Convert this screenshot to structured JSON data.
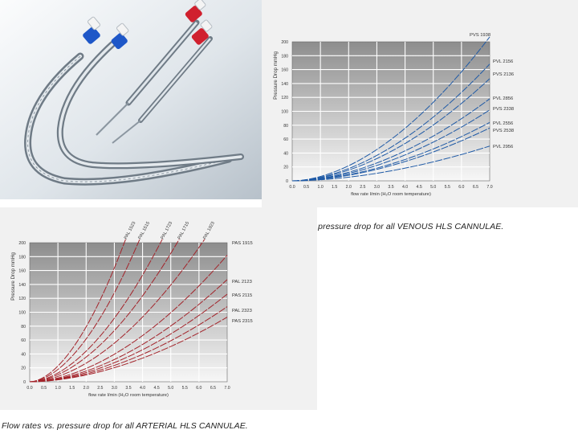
{
  "photo": {
    "subject": "cannula-product-photo"
  },
  "venous_caption": "Flow rates vs. pressure drop for all VENOUS HLS CANNULAE.",
  "arterial_caption": "Flow rates vs. pressure drop for all ARTERIAL HLS CANNULAE.",
  "colors": {
    "venous": "#1f5aa6",
    "arterial": "#a3232a"
  },
  "chart_data": [
    {
      "id": "venous",
      "type": "line",
      "title": "Flow rates vs. pressure drop for all VENOUS HLS CANNULAE.",
      "xlabel": "flow rate l/min (H₂O room temperature)",
      "ylabel": "Pressure Drop mmHg",
      "xlim": [
        0,
        7
      ],
      "ylim": [
        0,
        200
      ],
      "xticks": [
        "0.0",
        "0.5",
        "1.0",
        "1.5",
        "2.0",
        "2.5",
        "3.0",
        "3.5",
        "4.0",
        "4.5",
        "5.0",
        "5.5",
        "6.0",
        "6.5",
        "7.0"
      ],
      "yticks": [
        "0",
        "20",
        "40",
        "60",
        "80",
        "100",
        "120",
        "140",
        "160",
        "180",
        "200"
      ],
      "grid": true,
      "series": [
        {
          "name": "PVS 1938",
          "end_value": 207
        },
        {
          "name": "PVL 2156",
          "end_value": 168
        },
        {
          "name": "PVS 2136",
          "end_value": 147
        },
        {
          "name": "PVL 2856",
          "end_value": 118
        },
        {
          "name": "PVS 2338",
          "end_value": 102
        },
        {
          "name": "PVL 2556",
          "end_value": 84
        },
        {
          "name": "PVS 2538",
          "end_value": 76
        },
        {
          "name": "PVL 2956",
          "end_value": 50
        }
      ]
    },
    {
      "id": "arterial",
      "type": "line",
      "title": "Flow rates vs. pressure drop for all ARTERIAL HLS CANNULAE.",
      "xlabel": "flow rate l/min (H₂O room temperature)",
      "ylabel": "Pressure Drop mmHg",
      "xlim": [
        0,
        7
      ],
      "ylim": [
        0,
        200
      ],
      "xticks": [
        "0.0",
        "0.5",
        "1.0",
        "1.5",
        "2.0",
        "2.5",
        "3.0",
        "3.5",
        "4.0",
        "4.5",
        "5.0",
        "5.5",
        "6.0",
        "6.5",
        "7.0"
      ],
      "yticks": [
        "0",
        "20",
        "40",
        "60",
        "80",
        "100",
        "120",
        "140",
        "160",
        "180",
        "200"
      ],
      "grid": true,
      "series": [
        {
          "name": "PAL 1523",
          "end_x": 3.4,
          "end_value": 205,
          "label_at": "top"
        },
        {
          "name": "PAL 1515",
          "end_x": 3.9,
          "end_value": 205,
          "label_at": "top"
        },
        {
          "name": "PAL 1723",
          "end_x": 4.7,
          "end_value": 205,
          "label_at": "top"
        },
        {
          "name": "PAL 1715",
          "end_x": 5.3,
          "end_value": 205,
          "label_at": "top"
        },
        {
          "name": "PAL 1923",
          "end_x": 6.2,
          "end_value": 205,
          "label_at": "top"
        },
        {
          "name": "PAS 1915",
          "end_x": 7.0,
          "end_value": 182,
          "label_at": "right"
        },
        {
          "name": "PAL 2123",
          "end_x": 7.0,
          "end_value": 147,
          "label_at": "right"
        },
        {
          "name": "PAS 2115",
          "end_x": 7.0,
          "end_value": 126,
          "label_at": "right"
        },
        {
          "name": "PAL 2323",
          "end_x": 7.0,
          "end_value": 108,
          "label_at": "right"
        },
        {
          "name": "PAS 2315",
          "end_x": 7.0,
          "end_value": 93,
          "label_at": "right"
        }
      ]
    }
  ]
}
